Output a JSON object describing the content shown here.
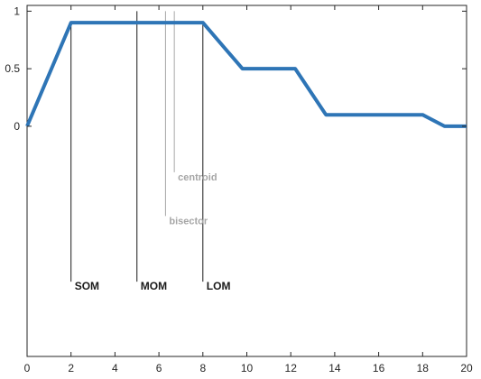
{
  "chart_data": {
    "type": "line",
    "xlim": [
      0,
      20
    ],
    "ylim": [
      -2,
      1.05
    ],
    "grid": false,
    "xticks": [
      0,
      2,
      4,
      6,
      8,
      10,
      12,
      14,
      16,
      18,
      20
    ],
    "yticks": [
      {
        "value": 0,
        "label": "0"
      },
      {
        "value": 0.5,
        "label": "0.5"
      },
      {
        "value": 1,
        "label": "1"
      }
    ],
    "series": [
      {
        "color": "#2e75b6",
        "x": [
          0,
          2,
          8,
          9.8,
          12.2,
          13.6,
          18,
          19,
          20
        ],
        "y": [
          0,
          0.9,
          0.9,
          0.5,
          0.5,
          0.1,
          0.1,
          0,
          0
        ]
      }
    ],
    "markers": [
      {
        "name": "SOM",
        "label": "SOM",
        "x": 2,
        "y_top": 0.9,
        "y_bottom": -1.35,
        "color": "#1a1a1a"
      },
      {
        "name": "MOM",
        "label": "MOM",
        "x": 5,
        "y_top": 1.0,
        "y_bottom": -1.35,
        "color": "#1a1a1a"
      },
      {
        "name": "LOM",
        "label": "LOM",
        "x": 8,
        "y_top": 0.9,
        "y_bottom": -1.35,
        "color": "#1a1a1a"
      },
      {
        "name": "bisector",
        "label": "bisector",
        "x": 6.3,
        "y_top": 1.0,
        "y_bottom": -0.78,
        "color": "#a6a6a6"
      },
      {
        "name": "centroid",
        "label": "centroid",
        "x": 6.7,
        "y_top": 1.0,
        "y_bottom": -0.4,
        "color": "#a6a6a6"
      }
    ]
  }
}
